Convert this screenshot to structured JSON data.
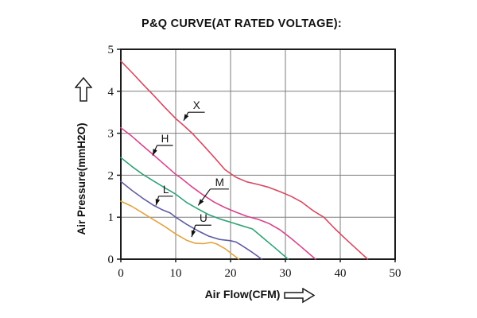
{
  "chart_data": {
    "type": "line",
    "title": "P&Q CURVE(AT RATED VOLTAGE):",
    "xlabel": "Air Flow(CFM)",
    "ylabel": "Air Pressure(mmH2O)",
    "xlim": [
      0,
      50
    ],
    "ylim": [
      0,
      5
    ],
    "xticks": [
      0,
      10,
      20,
      30,
      40,
      50
    ],
    "yticks": [
      0,
      1,
      2,
      3,
      4,
      5
    ],
    "grid": true,
    "legend_position": "inline-curve-labels",
    "colors": {
      "grid": "#7d7d7d",
      "border": "#1c1c1c",
      "text": "#111111",
      "background": "#ffffff"
    },
    "icons": {
      "y_axis_arrow": "up-arrow",
      "x_axis_arrow": "right-arrow"
    },
    "series": [
      {
        "name": "X",
        "color": "#d7485f",
        "points": [
          [
            0,
            4.72
          ],
          [
            2,
            4.45
          ],
          [
            4,
            4.17
          ],
          [
            6,
            3.9
          ],
          [
            8,
            3.62
          ],
          [
            10,
            3.35
          ],
          [
            11.5,
            3.18
          ],
          [
            13,
            3.0
          ],
          [
            15,
            2.72
          ],
          [
            17,
            2.43
          ],
          [
            19,
            2.13
          ],
          [
            21,
            1.95
          ],
          [
            23,
            1.84
          ],
          [
            25,
            1.78
          ],
          [
            27,
            1.71
          ],
          [
            29,
            1.61
          ],
          [
            31,
            1.5
          ],
          [
            33,
            1.36
          ],
          [
            35,
            1.16
          ],
          [
            37,
            1.0
          ],
          [
            39,
            0.73
          ],
          [
            41,
            0.48
          ],
          [
            43,
            0.24
          ],
          [
            45,
            0
          ]
        ]
      },
      {
        "name": "H",
        "color": "#d8438f",
        "points": [
          [
            0,
            3.13
          ],
          [
            2,
            2.93
          ],
          [
            4,
            2.7
          ],
          [
            6,
            2.48
          ],
          [
            8,
            2.25
          ],
          [
            10,
            2.02
          ],
          [
            11,
            1.93
          ],
          [
            13,
            1.72
          ],
          [
            15,
            1.53
          ],
          [
            17,
            1.36
          ],
          [
            19,
            1.23
          ],
          [
            21,
            1.12
          ],
          [
            23,
            1.02
          ],
          [
            25,
            0.95
          ],
          [
            27,
            0.85
          ],
          [
            29,
            0.7
          ],
          [
            31,
            0.5
          ],
          [
            33,
            0.28
          ],
          [
            35.5,
            0
          ]
        ]
      },
      {
        "name": "M",
        "color": "#2fa475",
        "points": [
          [
            0,
            2.42
          ],
          [
            2,
            2.21
          ],
          [
            4,
            2.02
          ],
          [
            6,
            1.86
          ],
          [
            8,
            1.7
          ],
          [
            10,
            1.55
          ],
          [
            12,
            1.35
          ],
          [
            14,
            1.2
          ],
          [
            16,
            1.06
          ],
          [
            18,
            0.96
          ],
          [
            20,
            0.88
          ],
          [
            22,
            0.8
          ],
          [
            24,
            0.72
          ],
          [
            26,
            0.5
          ],
          [
            28,
            0.28
          ],
          [
            30.5,
            0
          ]
        ]
      },
      {
        "name": "L",
        "color": "#5f5da3",
        "points": [
          [
            0,
            1.85
          ],
          [
            2,
            1.64
          ],
          [
            4,
            1.45
          ],
          [
            6,
            1.28
          ],
          [
            7.5,
            1.18
          ],
          [
            9,
            1.1
          ],
          [
            10,
            1.0
          ],
          [
            12,
            0.83
          ],
          [
            14,
            0.68
          ],
          [
            16,
            0.55
          ],
          [
            18,
            0.47
          ],
          [
            20,
            0.44
          ],
          [
            21,
            0.41
          ],
          [
            22,
            0.33
          ],
          [
            24,
            0.16
          ],
          [
            25.7,
            0
          ]
        ]
      },
      {
        "name": "U",
        "color": "#e3a33d",
        "points": [
          [
            0,
            1.38
          ],
          [
            2,
            1.26
          ],
          [
            4,
            1.1
          ],
          [
            6,
            0.94
          ],
          [
            8,
            0.78
          ],
          [
            10,
            0.6
          ],
          [
            12,
            0.45
          ],
          [
            13.5,
            0.38
          ],
          [
            15,
            0.37
          ],
          [
            16.5,
            0.4
          ],
          [
            17.5,
            0.36
          ],
          [
            19,
            0.25
          ],
          [
            20,
            0.15
          ],
          [
            21.5,
            0
          ]
        ]
      }
    ],
    "annotations": [
      {
        "name": "X",
        "tip": [
          11.45,
          3.3
        ],
        "ul_from": [
          12.3,
          3.5
        ],
        "ul_to": [
          15.3,
          3.5
        ]
      },
      {
        "name": "H",
        "tip": [
          5.8,
          2.47
        ],
        "ul_from": [
          6.6,
          2.71
        ],
        "ul_to": [
          9.5,
          2.71
        ]
      },
      {
        "name": "M",
        "tip": [
          14.1,
          1.28
        ],
        "ul_from": [
          16.3,
          1.67
        ],
        "ul_to": [
          19.7,
          1.67
        ]
      },
      {
        "name": "L",
        "tip": [
          6.4,
          1.28
        ],
        "ul_from": [
          6.9,
          1.5
        ],
        "ul_to": [
          9.5,
          1.5
        ]
      },
      {
        "name": "U",
        "tip": [
          12.9,
          0.53
        ],
        "ul_from": [
          13.6,
          0.81
        ],
        "ul_to": [
          16.5,
          0.81
        ]
      }
    ]
  }
}
